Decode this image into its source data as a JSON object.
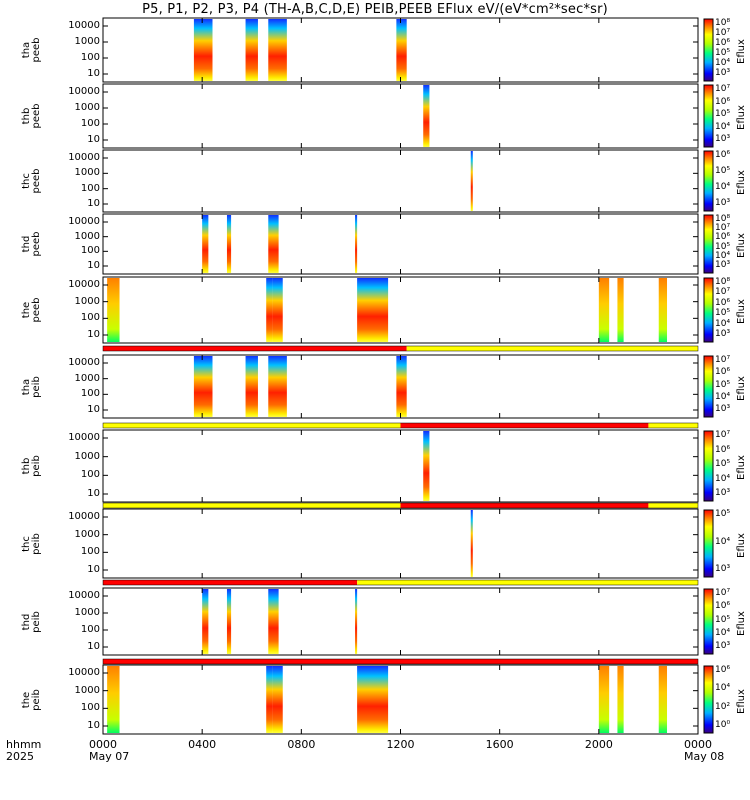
{
  "title": "P5, P1, P2, P3, P4 (TH-A,B,C,D,E) PEIB,PEEB EFlux eV/(eV*cm²*sec*sr)",
  "colors": {
    "bar_red": "#ff0000",
    "bar_yellow": "#ffff00",
    "frame": "#000000"
  },
  "x_axis": {
    "row_label_1": "hhmm",
    "row_label_2": "2025",
    "ticks": [
      "0000",
      "0400",
      "0800",
      "1200",
      "1600",
      "2000",
      "0000"
    ],
    "dates": [
      {
        "at": "0000",
        "text": "May 07"
      },
      {
        "at": "2400",
        "text": "May 08"
      }
    ]
  },
  "chart_data": [
    {
      "type": "heatmap",
      "ylabel": [
        "tha",
        "peeb"
      ],
      "yticks": [
        "10000",
        "1000",
        "100",
        "10"
      ],
      "colorbar_label": "Eflux",
      "cb_ticks": [
        "10⁸",
        "10⁷",
        "10⁶",
        "10⁵",
        "10⁴",
        "10³"
      ],
      "intervals": [
        [
          "0340",
          "0425"
        ],
        [
          "0545",
          "0615"
        ],
        [
          "0640",
          "0725"
        ],
        [
          "1150",
          "1215"
        ]
      ],
      "status_bar": null
    },
    {
      "type": "heatmap",
      "ylabel": [
        "thb",
        "peeb"
      ],
      "yticks": [
        "10000",
        "1000",
        "100",
        "10"
      ],
      "colorbar_label": "Eflux",
      "cb_ticks": [
        "10⁷",
        "10⁶",
        "10⁵",
        "10⁴",
        "10³"
      ],
      "intervals": [
        [
          "1255",
          "1310"
        ]
      ],
      "status_bar": null
    },
    {
      "type": "heatmap",
      "ylabel": [
        "thc",
        "peeb"
      ],
      "yticks": [
        "10000",
        "1000",
        "100",
        "10"
      ],
      "colorbar_label": "Eflux",
      "cb_ticks": [
        "10⁶",
        "10⁵",
        "10⁴",
        "10³"
      ],
      "intervals": [
        [
          "1450",
          "1455"
        ]
      ],
      "status_bar": null
    },
    {
      "type": "heatmap",
      "ylabel": [
        "thd",
        "peeb"
      ],
      "yticks": [
        "10000",
        "1000",
        "100",
        "10"
      ],
      "colorbar_label": "Eflux",
      "cb_ticks": [
        "10⁸",
        "10⁷",
        "10⁶",
        "10⁵",
        "10⁴",
        "10³"
      ],
      "intervals": [
        [
          "0400",
          "0415"
        ],
        [
          "0500",
          "0510"
        ],
        [
          "0640",
          "0705"
        ],
        [
          "1010",
          "1015"
        ]
      ],
      "status_bar": null
    },
    {
      "type": "heatmap",
      "ylabel": [
        "the",
        "peeb"
      ],
      "yticks": [
        "10000",
        "1000",
        "100",
        "10"
      ],
      "colorbar_label": "Eflux",
      "cb_ticks": [
        "10⁸",
        "10⁷",
        "10⁶",
        "10⁵",
        "10⁴",
        "10³"
      ],
      "intervals": [
        [
          "0010",
          "0040"
        ],
        [
          "0635",
          "0650"
        ],
        [
          "0650",
          "0715"
        ],
        [
          "1015",
          "1130"
        ],
        [
          "2000",
          "2025"
        ],
        [
          "2045",
          "2100"
        ],
        [
          "2225",
          "2245"
        ]
      ],
      "status_bar": [
        {
          "from": "0000",
          "to": "1215",
          "color": "red"
        },
        {
          "from": "1215",
          "to": "2400",
          "color": "yellow"
        }
      ]
    },
    {
      "type": "heatmap",
      "ylabel": [
        "tha",
        "peib"
      ],
      "yticks": [
        "10000",
        "1000",
        "100",
        "10"
      ],
      "colorbar_label": "Eflux",
      "cb_ticks": [
        "10⁷",
        "10⁶",
        "10⁵",
        "10⁴",
        "10³"
      ],
      "intervals": [
        [
          "0340",
          "0425"
        ],
        [
          "0545",
          "0615"
        ],
        [
          "0640",
          "0725"
        ],
        [
          "1150",
          "1215"
        ]
      ],
      "status_bar": [
        {
          "from": "0000",
          "to": "1200",
          "color": "yellow"
        },
        {
          "from": "1200",
          "to": "2200",
          "color": "red"
        },
        {
          "from": "2200",
          "to": "2400",
          "color": "yellow"
        }
      ]
    },
    {
      "type": "heatmap",
      "ylabel": [
        "thb",
        "peib"
      ],
      "yticks": [
        "10000",
        "1000",
        "100",
        "10"
      ],
      "colorbar_label": "Eflux",
      "cb_ticks": [
        "10⁷",
        "10⁶",
        "10⁵",
        "10⁴",
        "10³"
      ],
      "intervals": [
        [
          "1255",
          "1310"
        ]
      ],
      "status_bar": [
        {
          "from": "0000",
          "to": "1200",
          "color": "yellow"
        },
        {
          "from": "1200",
          "to": "2200",
          "color": "red"
        },
        {
          "from": "2200",
          "to": "2400",
          "color": "yellow"
        }
      ]
    },
    {
      "type": "heatmap",
      "ylabel": [
        "thc",
        "peib"
      ],
      "yticks": [
        "10000",
        "1000",
        "100",
        "10"
      ],
      "colorbar_label": "Eflux",
      "cb_ticks": [
        "10⁵",
        "10⁴",
        "10³"
      ],
      "intervals": [
        [
          "1450",
          "1455"
        ]
      ],
      "status_bar": [
        {
          "from": "0000",
          "to": "1015",
          "color": "red"
        },
        {
          "from": "1015",
          "to": "2400",
          "color": "yellow"
        }
      ]
    },
    {
      "type": "heatmap",
      "ylabel": [
        "thd",
        "peib"
      ],
      "yticks": [
        "10000",
        "1000",
        "100",
        "10"
      ],
      "colorbar_label": "Eflux",
      "cb_ticks": [
        "10⁷",
        "10⁶",
        "10⁵",
        "10⁴",
        "10³"
      ],
      "intervals": [
        [
          "0400",
          "0415"
        ],
        [
          "0500",
          "0510"
        ],
        [
          "0640",
          "0705"
        ],
        [
          "1010",
          "1015"
        ]
      ],
      "status_bar": [
        {
          "from": "0000",
          "to": "2400",
          "color": "red"
        }
      ]
    },
    {
      "type": "heatmap",
      "ylabel": [
        "the",
        "peib"
      ],
      "yticks": [
        "10000",
        "1000",
        "100",
        "10"
      ],
      "colorbar_label": "Eflux",
      "cb_ticks": [
        "10⁶",
        "10⁴",
        "10²",
        "10⁰"
      ],
      "intervals": [
        [
          "0010",
          "0040"
        ],
        [
          "0635",
          "0650"
        ],
        [
          "0650",
          "0715"
        ],
        [
          "1015",
          "1130"
        ],
        [
          "2000",
          "2025"
        ],
        [
          "2045",
          "2100"
        ],
        [
          "2225",
          "2245"
        ]
      ],
      "status_bar": null
    }
  ]
}
